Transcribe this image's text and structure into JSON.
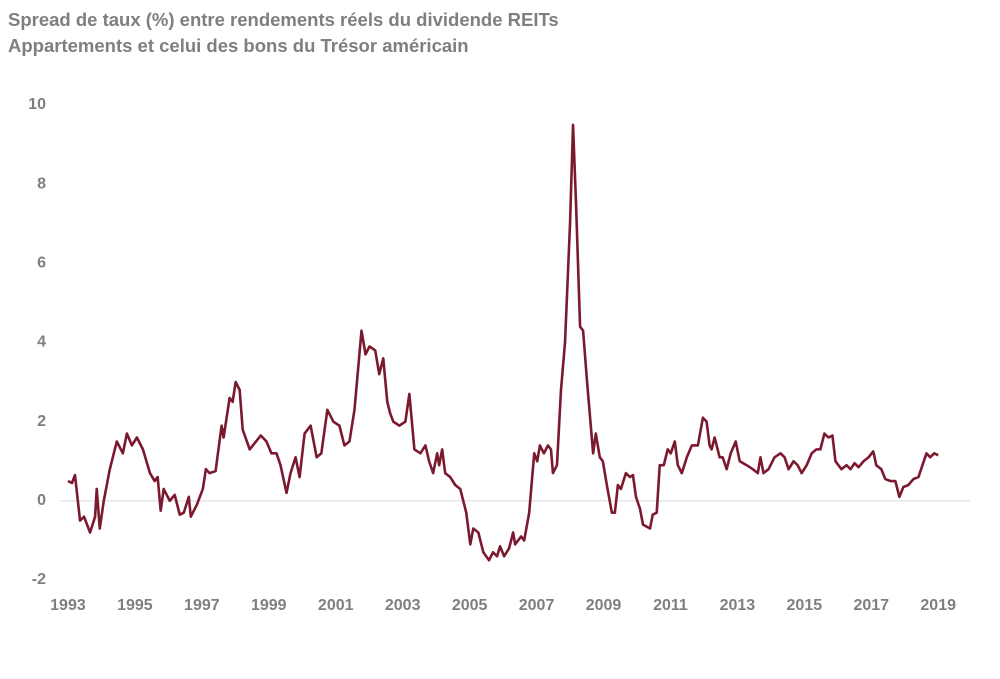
{
  "chart_data": {
    "type": "line",
    "title": [
      "Spread de taux (%) entre rendements réels du dividende REITs",
      "Appartements et celui des bons du Trésor américain"
    ],
    "color": "#7b1a2e",
    "x": [
      1993.0,
      1993.12,
      1993.21,
      1993.36,
      1993.48,
      1993.66,
      1993.81,
      1993.86,
      1993.95,
      1994.07,
      1994.25,
      1994.46,
      1994.64,
      1994.76,
      1994.91,
      1995.06,
      1995.24,
      1995.45,
      1995.59,
      1995.68,
      1995.77,
      1995.86,
      1996.04,
      1996.19,
      1996.34,
      1996.46,
      1996.61,
      1996.67,
      1996.85,
      1997.03,
      1997.12,
      1997.23,
      1997.41,
      1997.59,
      1997.65,
      1997.83,
      1997.92,
      1998.01,
      1998.13,
      1998.22,
      1998.43,
      1998.76,
      1998.93,
      1999.08,
      1999.23,
      1999.35,
      1999.53,
      1999.65,
      1999.8,
      1999.92,
      2000.07,
      2000.25,
      2000.43,
      2000.57,
      2000.75,
      2000.93,
      2001.11,
      2001.26,
      2001.41,
      2001.56,
      2001.77,
      2001.89,
      2002.01,
      2002.18,
      2002.3,
      2002.42,
      2002.54,
      2002.63,
      2002.72,
      2002.9,
      2003.08,
      2003.2,
      2003.35,
      2003.53,
      2003.68,
      2003.79,
      2003.91,
      2004.03,
      2004.09,
      2004.18,
      2004.27,
      2004.42,
      2004.57,
      2004.72,
      2004.9,
      2005.02,
      2005.11,
      2005.26,
      2005.41,
      2005.58,
      2005.7,
      2005.82,
      2005.91,
      2006.03,
      2006.18,
      2006.3,
      2006.36,
      2006.54,
      2006.63,
      2006.78,
      2006.93,
      2007.02,
      2007.1,
      2007.22,
      2007.34,
      2007.43,
      2007.49,
      2007.61,
      2007.73,
      2007.85,
      2008.0,
      2008.09,
      2008.18,
      2008.3,
      2008.39,
      2008.51,
      2008.69,
      2008.77,
      2008.89,
      2008.98,
      2009.1,
      2009.25,
      2009.34,
      2009.43,
      2009.52,
      2009.67,
      2009.79,
      2009.88,
      2009.97,
      2010.09,
      2010.18,
      2010.39,
      2010.47,
      2010.59,
      2010.68,
      2010.8,
      2010.92,
      2011.01,
      2011.13,
      2011.22,
      2011.34,
      2011.49,
      2011.64,
      2011.82,
      2011.97,
      2012.08,
      2012.17,
      2012.23,
      2012.32,
      2012.47,
      2012.56,
      2012.68,
      2012.8,
      2012.95,
      2013.07,
      2013.28,
      2013.46,
      2013.61,
      2013.69,
      2013.78,
      2013.93,
      2014.11,
      2014.29,
      2014.41,
      2014.53,
      2014.68,
      2014.8,
      2014.92,
      2015.07,
      2015.22,
      2015.36,
      2015.48,
      2015.6,
      2015.72,
      2015.84,
      2015.93,
      2016.11,
      2016.26,
      2016.38,
      2016.5,
      2016.62,
      2016.77,
      2016.92,
      2017.06,
      2017.15,
      2017.3,
      2017.42,
      2017.57,
      2017.72,
      2017.84,
      2017.96,
      2018.11,
      2018.26,
      2018.41,
      2018.53,
      2018.65,
      2018.76,
      2018.88,
      2019.0
    ],
    "values": [
      0.5,
      0.45,
      0.65,
      -0.5,
      -0.4,
      -0.8,
      -0.4,
      0.3,
      -0.7,
      0.0,
      0.8,
      1.5,
      1.2,
      1.7,
      1.4,
      1.6,
      1.3,
      0.7,
      0.5,
      0.6,
      -0.25,
      0.3,
      0.0,
      0.15,
      -0.35,
      -0.3,
      0.1,
      -0.4,
      -0.1,
      0.3,
      0.8,
      0.7,
      0.75,
      1.9,
      1.6,
      2.6,
      2.5,
      3.0,
      2.8,
      1.8,
      1.3,
      1.65,
      1.5,
      1.2,
      1.2,
      0.9,
      0.2,
      0.7,
      1.1,
      0.6,
      1.7,
      1.9,
      1.1,
      1.2,
      2.3,
      2.0,
      1.9,
      1.4,
      1.5,
      2.3,
      4.3,
      3.7,
      3.9,
      3.8,
      3.2,
      3.6,
      2.5,
      2.2,
      2.0,
      1.9,
      2.0,
      2.7,
      1.3,
      1.2,
      1.4,
      1.0,
      0.7,
      1.2,
      0.9,
      1.3,
      0.7,
      0.6,
      0.4,
      0.3,
      -0.3,
      -1.1,
      -0.7,
      -0.8,
      -1.3,
      -1.5,
      -1.3,
      -1.4,
      -1.15,
      -1.4,
      -1.2,
      -0.8,
      -1.1,
      -0.9,
      -1.0,
      -0.3,
      1.2,
      1.0,
      1.4,
      1.2,
      1.4,
      1.3,
      0.7,
      0.9,
      2.8,
      4.0,
      7.0,
      9.5,
      7.5,
      4.4,
      4.3,
      3.0,
      1.2,
      1.7,
      1.1,
      1.0,
      0.4,
      -0.3,
      -0.3,
      0.4,
      0.3,
      0.7,
      0.6,
      0.65,
      0.1,
      -0.2,
      -0.6,
      -0.7,
      -0.35,
      -0.3,
      0.9,
      0.9,
      1.3,
      1.2,
      1.5,
      0.9,
      0.7,
      1.1,
      1.4,
      1.4,
      2.1,
      2.0,
      1.4,
      1.3,
      1.6,
      1.1,
      1.1,
      0.8,
      1.2,
      1.5,
      1.0,
      0.9,
      0.8,
      0.7,
      1.1,
      0.7,
      0.8,
      1.1,
      1.2,
      1.1,
      0.8,
      1.0,
      0.9,
      0.7,
      0.9,
      1.2,
      1.3,
      1.3,
      1.7,
      1.6,
      1.65,
      1.0,
      0.8,
      0.9,
      0.8,
      0.95,
      0.85,
      1.0,
      1.1,
      1.25,
      0.9,
      0.8,
      0.55,
      0.5,
      0.5,
      0.1,
      0.35,
      0.4,
      0.55,
      0.6,
      0.9,
      1.2,
      1.1,
      1.2,
      1.15
    ],
    "xlim": [
      1992.75,
      2019.95
    ],
    "xticks": [
      1993,
      1995,
      1997,
      1999,
      2001,
      2003,
      2005,
      2007,
      2009,
      2011,
      2013,
      2015,
      2017,
      2019
    ],
    "ylim": [
      -2,
      10
    ],
    "yticks": [
      -2,
      0,
      2,
      4,
      6,
      8,
      10
    ]
  }
}
